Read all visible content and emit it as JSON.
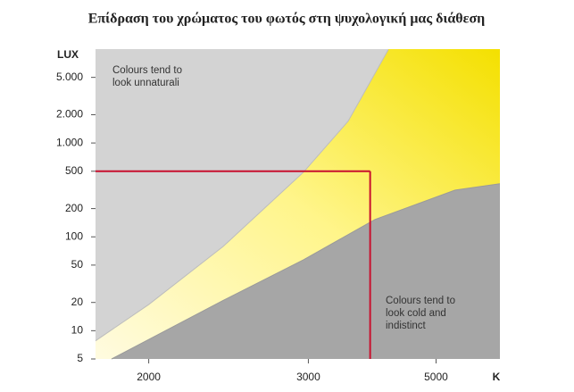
{
  "chart_data": {
    "type": "area",
    "title": "Επίδραση του χρώματος του φωτός στη ψυχολογική μας διάθεση",
    "y_label": "LUX",
    "x_label": "K",
    "xscale": "reciprocal",
    "yscale": "log",
    "xlim": [
      1800,
      7500
    ],
    "ylim": [
      5,
      10000
    ],
    "xticks": [
      2000,
      3000,
      5000
    ],
    "yticks": [
      5,
      10,
      20,
      50,
      100,
      200,
      500,
      {
        "value": 1000,
        "label": "1.000"
      },
      {
        "value": 2000,
        "label": "2.000"
      },
      {
        "value": 5000,
        "label": "5.000"
      }
    ],
    "series": [
      {
        "color": "#d3d3d3",
        "x": [
          1800,
          2000,
          2368,
          2955,
          3427,
          4002
        ],
        "values": [
          7.8,
          19,
          79,
          489,
          1706,
          9870
        ]
      },
      {
        "color": "#a6a6a6",
        "x": [
          1856,
          2368,
          2955,
          3791,
          5556,
          7500
        ],
        "values": [
          5,
          21,
          57,
          153,
          315,
          368
        ]
      }
    ],
    "reference": {
      "color": "#c8102e",
      "x": 3720,
      "y": 500
    },
    "annotations": [
      "Colours tend to",
      "look unnaturali",
      "Colours tend to",
      "look cold and",
      "indistinct"
    ]
  }
}
